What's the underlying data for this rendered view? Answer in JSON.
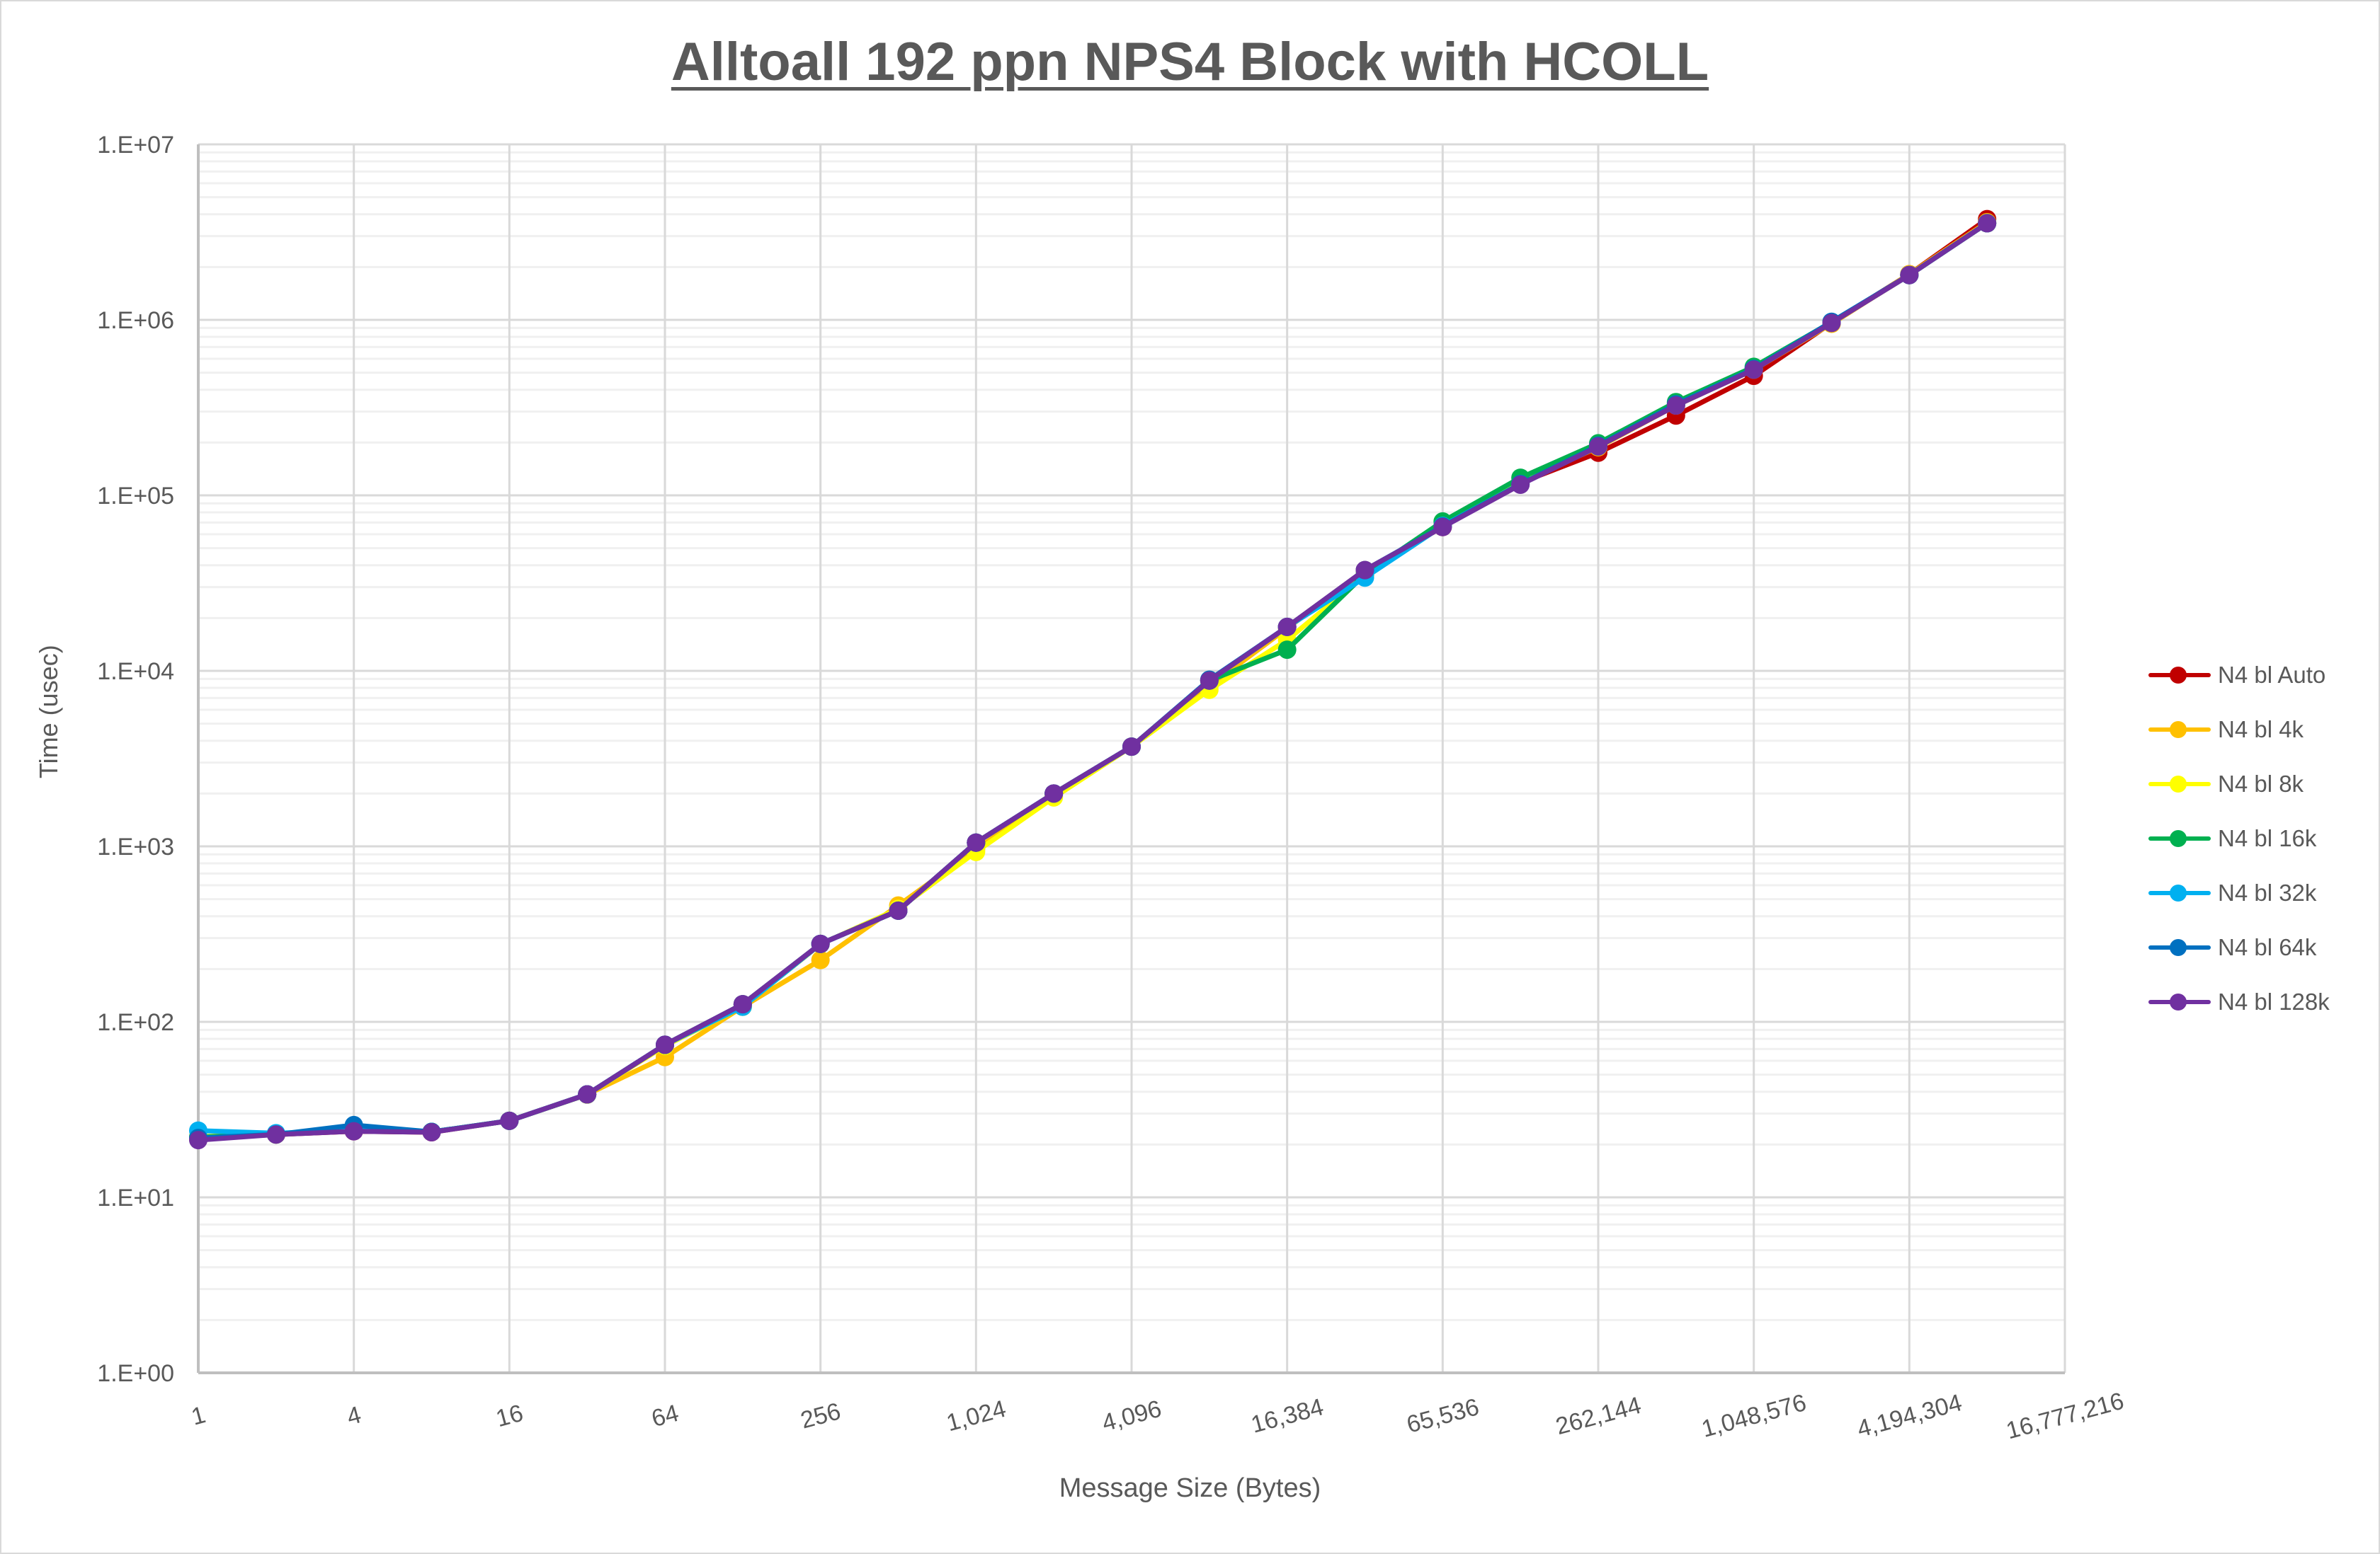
{
  "chart": {
    "title": "Alltoall 192 ppn NPS4 Block with HCOLL",
    "xlabel": "Message Size (Bytes)",
    "ylabel": "Time (usec)"
  },
  "chart_data": {
    "type": "line",
    "title": "Alltoall 192 ppn NPS4 Block with HCOLL",
    "xlabel": "Message Size (Bytes)",
    "ylabel": "Time (usec)",
    "xscale": "log2",
    "yscale": "log10",
    "ylim": [
      1,
      10000000
    ],
    "y_ticks": [
      "1.E+00",
      "1.E+01",
      "1.E+02",
      "1.E+03",
      "1.E+04",
      "1.E+05",
      "1.E+06",
      "1.E+07"
    ],
    "x_ticks": [
      "1",
      "4",
      "16",
      "64",
      "256",
      "1,024",
      "4,096",
      "16,384",
      "65,536",
      "262,144",
      "1,048,576",
      "4,194,304",
      "16,777,216"
    ],
    "grid": true,
    "legend_position": "right",
    "x": [
      1,
      2,
      4,
      8,
      16,
      32,
      64,
      128,
      256,
      512,
      1024,
      2048,
      4096,
      8192,
      16384,
      32768,
      65536,
      131072,
      262144,
      524288,
      1048576,
      2097152,
      4194304,
      8388608
    ],
    "series": [
      {
        "name": "N4 bl Auto",
        "color": "#c00000",
        "values": [
          21.5,
          22.8,
          23.8,
          23.5,
          27.3,
          38.6,
          74,
          126,
          278,
          430,
          1050,
          2000,
          3700,
          8800,
          17800,
          37500,
          66000,
          118000,
          175000,
          285000,
          480000,
          960000,
          1820000,
          3750000
        ]
      },
      {
        "name": "N4 bl 4k",
        "color": "#ffc000",
        "values": [
          22,
          22.8,
          24,
          23.6,
          27.3,
          38.6,
          63,
          122,
          225,
          460,
          960,
          1950,
          3700,
          8200,
          17500,
          37000,
          67000,
          119000,
          188000,
          325000,
          520000,
          950000,
          1820000,
          3600000
        ]
      },
      {
        "name": "N4 bl 8k",
        "color": "#ffff00",
        "values": [
          22.2,
          22.8,
          24,
          23.6,
          27.3,
          38.5,
          73,
          122,
          277,
          440,
          930,
          1900,
          3700,
          7800,
          15000,
          35000,
          68000,
          121000,
          190000,
          330000,
          525000,
          960000,
          1800000,
          3550000
        ]
      },
      {
        "name": "N4 bl 16k",
        "color": "#00b050",
        "values": [
          22,
          23,
          24,
          23.6,
          27.3,
          38.6,
          74,
          126,
          278,
          430,
          1050,
          2000,
          3700,
          8800,
          13200,
          35500,
          71000,
          126000,
          198000,
          340000,
          540000,
          970000,
          1800000,
          3550000
        ]
      },
      {
        "name": "N4 bl 32k",
        "color": "#00b0f0",
        "values": [
          24,
          23.2,
          24,
          23.6,
          27.3,
          38.6,
          74,
          122,
          278,
          430,
          1050,
          2000,
          3700,
          8800,
          17800,
          34000,
          67000,
          116000,
          190000,
          330000,
          525000,
          970000,
          1800000,
          3550000
        ]
      },
      {
        "name": "N4 bl 64k",
        "color": "#0070c0",
        "values": [
          21.8,
          22.8,
          25.8,
          23.6,
          27.3,
          38.6,
          74,
          126,
          278,
          430,
          1050,
          2000,
          3700,
          8900,
          17800,
          37500,
          66500,
          116000,
          192000,
          330000,
          525000,
          975000,
          1800000,
          3560000
        ]
      },
      {
        "name": "N4 bl 128k",
        "color": "#7030a0",
        "values": [
          21.2,
          22.8,
          23.8,
          23.5,
          27.3,
          38.6,
          74,
          126,
          278,
          430,
          1050,
          2000,
          3700,
          8800,
          17800,
          37500,
          66000,
          115000,
          190000,
          325000,
          520000,
          960000,
          1800000,
          3550000
        ]
      }
    ]
  }
}
